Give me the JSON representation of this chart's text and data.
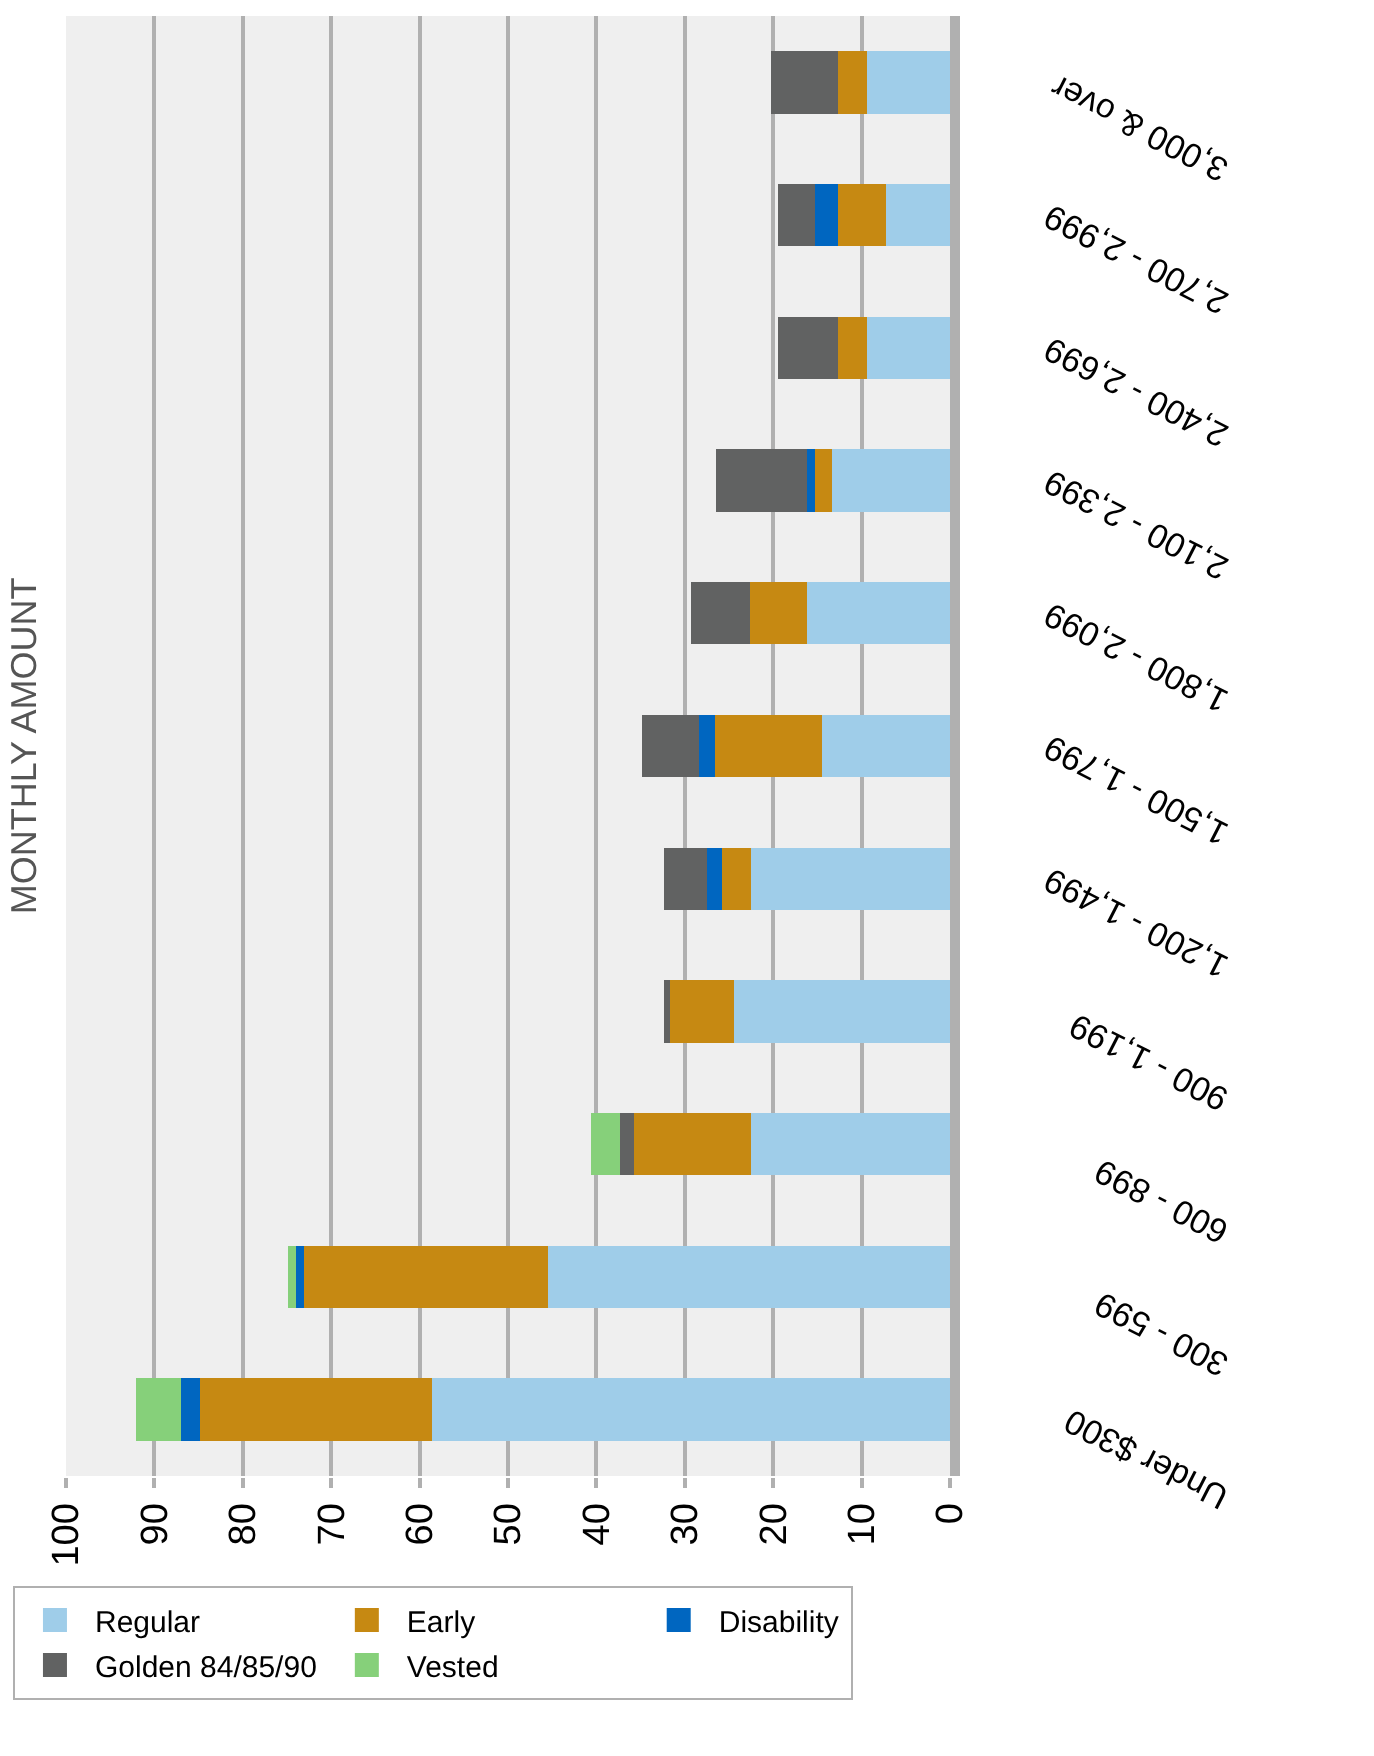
{
  "chart_data": {
    "type": "bar",
    "orientation": "horizontal",
    "stacked": true,
    "ylabel": "MONTHLY AMOUNT",
    "categories": [
      "3,000 & over",
      "2,700 - 2,999",
      "2,400 - 2,699",
      "2,100 - 2,399",
      "1,800 - 2,099",
      "1,500 - 1,799",
      "1,200 - 1,499",
      "900 - 1,199",
      "600 - 899",
      "300 - 599",
      "Under $300"
    ],
    "series": [
      {
        "name": "Regular",
        "color": "#9fcde9",
        "values": [
          9.4,
          7.2,
          9.4,
          13.4,
          16.2,
          14.5,
          22.5,
          24.4,
          22.5,
          45.5,
          58.6
        ]
      },
      {
        "name": "Early",
        "color": "#c68912",
        "values": [
          3.3,
          5.5,
          3.3,
          1.9,
          6.4,
          12.1,
          3.3,
          7.3,
          13.2,
          27.6,
          26.2
        ]
      },
      {
        "name": "Disability",
        "color": "#0066c0",
        "values": [
          null,
          2.6,
          null,
          0.9,
          null,
          1.8,
          1.7,
          null,
          null,
          0.9,
          2.2
        ]
      },
      {
        "name": "Golden 84/85/90",
        "color": "#616262",
        "values": [
          7.5,
          4.2,
          6.8,
          10.3,
          6.7,
          6.4,
          4.9,
          0.7,
          1.6,
          null,
          null
        ]
      },
      {
        "name": "Vested",
        "color": "#86d07a",
        "values": [
          null,
          null,
          null,
          null,
          null,
          null,
          null,
          null,
          3.3,
          0.9,
          5.1
        ]
      }
    ],
    "xlim": [
      100,
      0
    ],
    "xticks": [
      100,
      90,
      80,
      70,
      60,
      50,
      40,
      30,
      20,
      10,
      0
    ],
    "grid": "x",
    "legend": "bottom"
  }
}
